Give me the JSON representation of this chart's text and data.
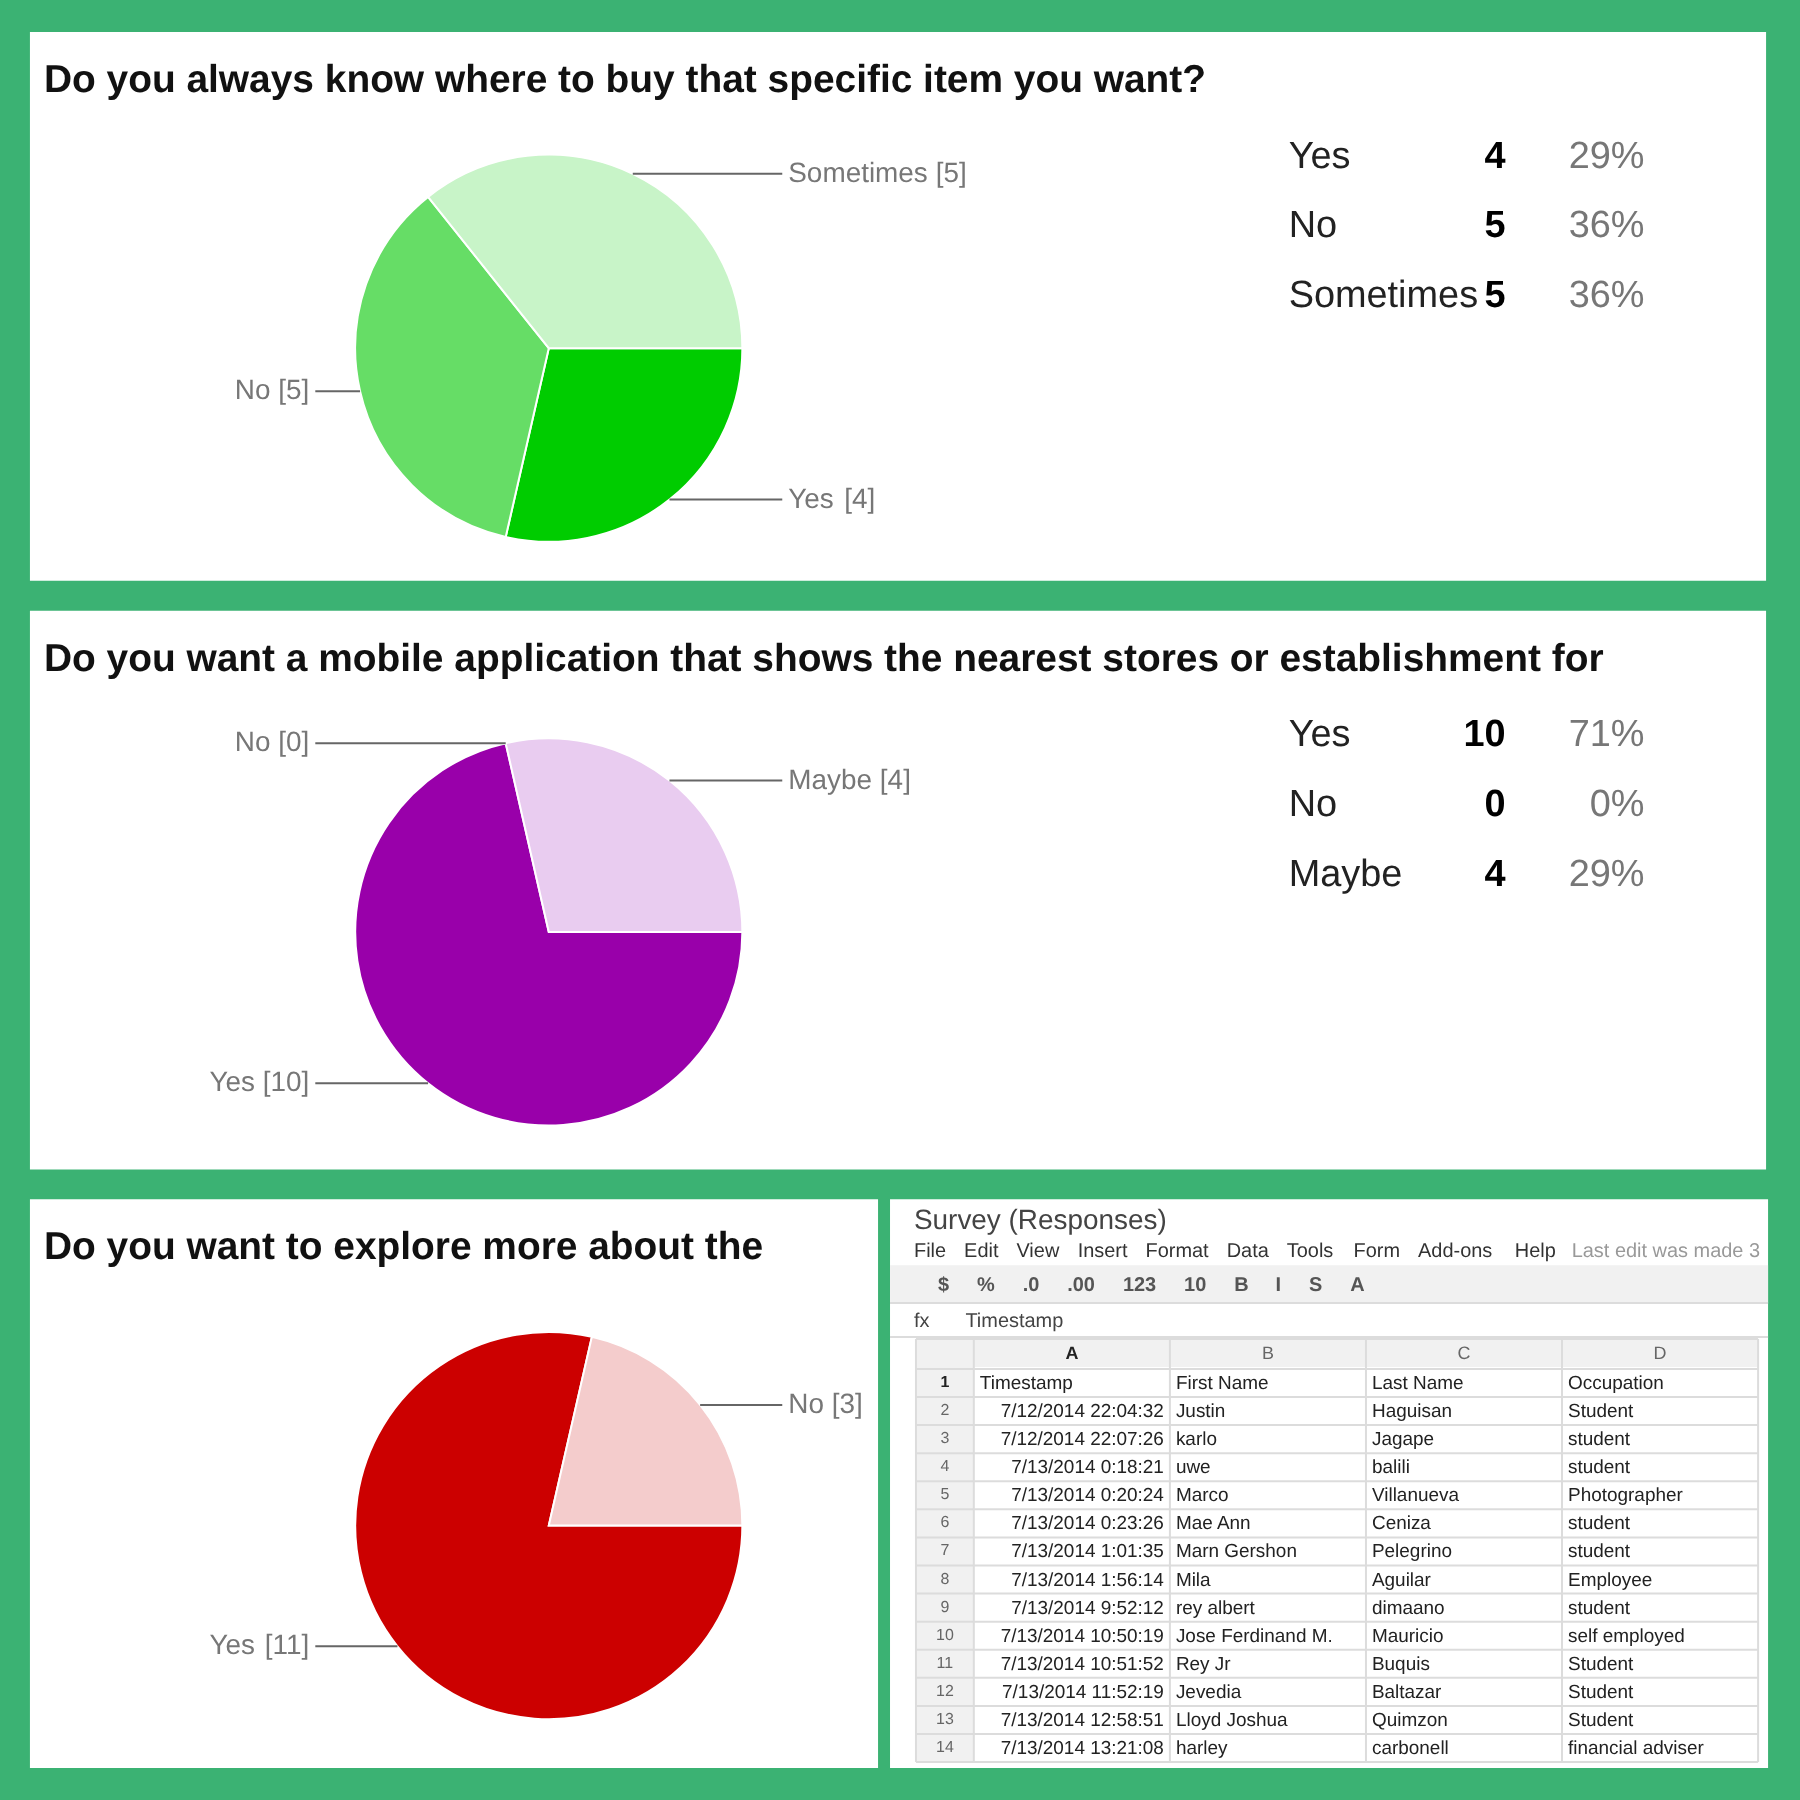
{
  "chart_data": [
    {
      "type": "pie",
      "title": "Do you always know where to buy that specific item you want?",
      "categories": [
        "Yes",
        "No",
        "Sometimes"
      ],
      "values": [
        4,
        5,
        5
      ],
      "colors": [
        "#00cc00",
        "#66dd66",
        "#c8f4c8"
      ],
      "value_labels": [
        "[4]",
        "[5]",
        "[5]"
      ]
    },
    {
      "type": "other",
      "y_categories": [
        "Yes",
        "No",
        "Sometimes"
      ],
      "cell_labels": [
        [
          "4",
          "29%"
        ],
        [
          "5",
          "36%"
        ],
        [
          "5",
          "36%"
        ]
      ]
    },
    {
      "type": "pie",
      "title": "Do you want a mobile application that shows the nearest stores or establishment for",
      "categories": [
        "Yes",
        "No",
        "Maybe"
      ],
      "values": [
        10,
        0,
        4
      ],
      "colors": [
        "#9900aa",
        "#cc66cc",
        "#e9ccf0"
      ],
      "value_labels": [
        "[10]",
        "[0]",
        "[4]"
      ]
    },
    {
      "type": "other",
      "y_categories": [
        "Yes",
        "No",
        "Maybe"
      ],
      "cell_labels": [
        [
          "10",
          "71%"
        ],
        [
          "0",
          "0%"
        ],
        [
          "4",
          "29%"
        ]
      ]
    },
    {
      "type": "pie",
      "title": "Do you want to explore more about the",
      "categories": [
        "Yes",
        "No"
      ],
      "values": [
        11,
        3
      ],
      "colors": [
        "#cc0000",
        "#f4cccc"
      ],
      "value_labels": [
        "[11]",
        "[3]"
      ]
    },
    {
      "type": "heatmap",
      "title": "Survey (Responses)",
      "annotations": [
        "File",
        "Edit",
        "View",
        "Insert",
        "Format",
        "Data",
        "Tools",
        "Form",
        "Add-ons",
        "Help",
        "Last edit was made 3",
        "$",
        "%",
        ".0",
        ".00",
        "123",
        "10",
        "B",
        "I",
        "S",
        "A",
        "fx",
        "Timestamp"
      ],
      "categories": [
        "A",
        "B",
        "C",
        "D"
      ],
      "y_categories": [
        "1",
        "2",
        "3",
        "4",
        "5",
        "6",
        "7",
        "8",
        "9",
        "10",
        "11",
        "12",
        "13",
        "14"
      ],
      "cells": [
        [
          null,
          null,
          null,
          null
        ],
        [
          null,
          null,
          null,
          null
        ],
        [
          null,
          null,
          null,
          null
        ],
        [
          null,
          null,
          null,
          null
        ],
        [
          null,
          null,
          null,
          null
        ],
        [
          null,
          null,
          null,
          null
        ],
        [
          null,
          null,
          null,
          null
        ],
        [
          null,
          null,
          null,
          null
        ],
        [
          null,
          null,
          null,
          null
        ],
        [
          null,
          null,
          null,
          null
        ],
        [
          null,
          null,
          null,
          null
        ],
        [
          null,
          null,
          null,
          null
        ],
        [
          null,
          null,
          null,
          null
        ],
        [
          null,
          null,
          null,
          null
        ]
      ],
      "cell_labels": [
        [
          "Timestamp",
          "First Name",
          "Last Name",
          "Occupation"
        ],
        [
          "7/12/2014 22:04:32",
          "Justin",
          "Haguisan",
          "Student"
        ],
        [
          "7/12/2014 22:07:26",
          "karlo",
          "Jagape",
          "student"
        ],
        [
          "7/13/2014 0:18:21",
          "uwe",
          "balili",
          "student"
        ],
        [
          "7/13/2014 0:20:24",
          "Marco",
          "Villanueva",
          "Photographer"
        ],
        [
          "7/13/2014 0:23:26",
          "Mae Ann",
          "Ceniza",
          "student"
        ],
        [
          "7/13/2014 1:01:35",
          "Marn Gershon",
          "Pelegrino",
          "student"
        ],
        [
          "7/13/2014 1:56:14",
          "Mila",
          "Aguilar",
          "Employee"
        ],
        [
          "7/13/2014 9:52:12",
          "rey albert",
          "dimaano",
          "student"
        ],
        [
          "7/13/2014 10:50:19",
          "Jose Ferdinand M.",
          "Mauricio",
          "self employed"
        ],
        [
          "7/13/2014 10:51:52",
          "Rey Jr",
          "Buquis",
          "Student"
        ],
        [
          "7/13/2014 11:52:19",
          "Jevedia",
          "Baltazar",
          "Student"
        ],
        [
          "7/13/2014 12:58:51",
          "Lloyd Joshua",
          "Quimzon",
          "Student"
        ],
        [
          "7/13/2014 13:21:08",
          "harley",
          "carbonell",
          "financial adviser"
        ]
      ]
    }
  ]
}
